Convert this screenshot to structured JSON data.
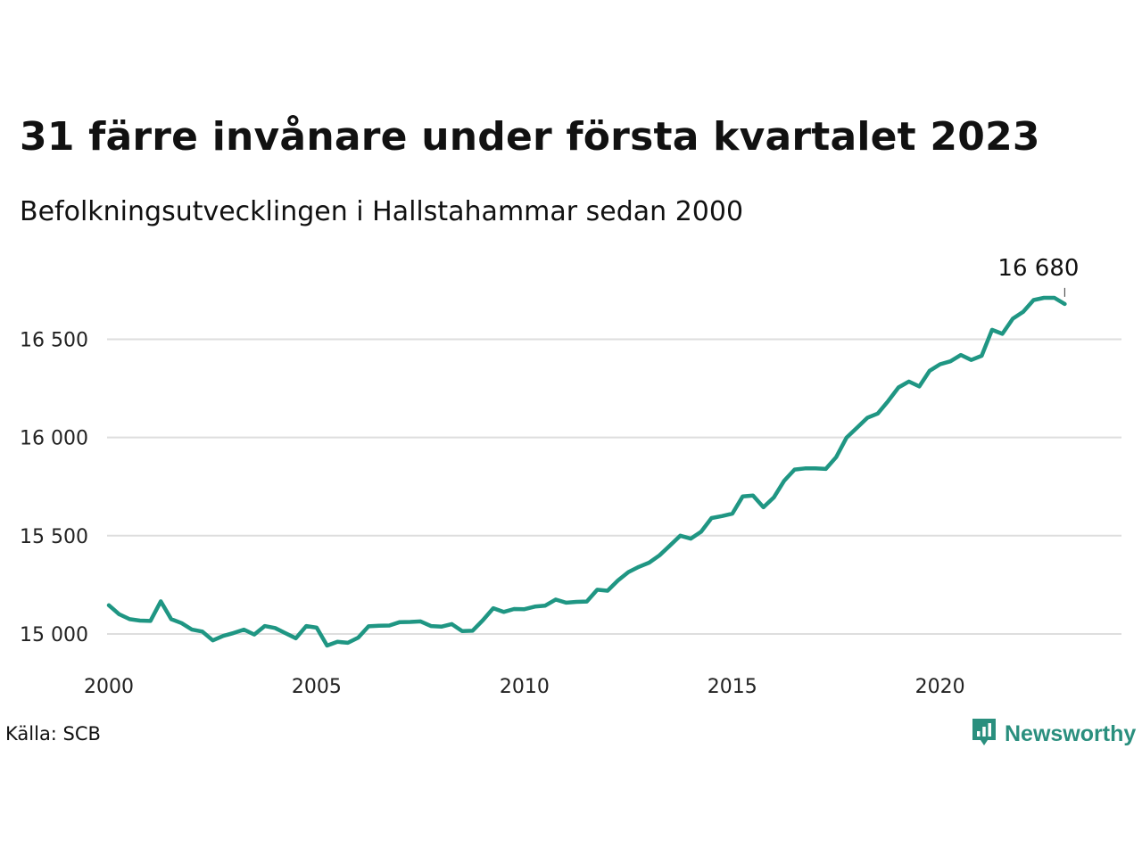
{
  "title": "31 färre invånare under första kvartalet 2023",
  "subtitle": "Befolkningsutvecklingen i Hallstahammar sedan 2000",
  "source": "Källa: SCB",
  "brand": {
    "name": "Newsworthy",
    "icon": "newsworthy-logo-icon",
    "color": "#2a8f7e"
  },
  "chart_data": {
    "type": "line",
    "title": "31 färre invånare under första kvartalet 2023",
    "subtitle": "Befolkningsutvecklingen i Hallstahammar sedan 2000",
    "xlabel": "",
    "ylabel": "",
    "x_ticks": [
      2000,
      2005,
      2010,
      2015,
      2020
    ],
    "y_ticks": [
      15000,
      15500,
      16000,
      16500
    ],
    "y_tick_labels": [
      "15 000",
      "15 500",
      "16 000",
      "16 500"
    ],
    "xlim": [
      2000,
      2024
    ],
    "ylim": [
      14850,
      16920
    ],
    "grid": "horizontal",
    "line_color": "#1f9683",
    "end_label": "16 680",
    "series": [
      {
        "x": [
          2000.0,
          2000.25,
          2000.5,
          2000.75,
          2001.0,
          2001.25,
          2001.5,
          2001.75,
          2002.0,
          2002.25,
          2002.5,
          2002.75,
          2003.0,
          2003.25,
          2003.5,
          2003.75,
          2004.0,
          2004.25,
          2004.5,
          2004.75,
          2005.0,
          2005.25,
          2005.5,
          2005.75,
          2006.0,
          2006.25,
          2006.5,
          2006.75,
          2007.0,
          2007.25,
          2007.5,
          2007.75,
          2008.0,
          2008.25,
          2008.5,
          2008.75,
          2009.0,
          2009.25,
          2009.5,
          2009.75,
          2010.0,
          2010.25,
          2010.5,
          2010.75,
          2011.0,
          2011.25,
          2011.5,
          2011.75,
          2012.0,
          2012.25,
          2012.5,
          2012.75,
          2013.0,
          2013.25,
          2013.5,
          2013.75,
          2014.0,
          2014.25,
          2014.5,
          2014.75,
          2015.0,
          2015.25,
          2015.5,
          2015.75,
          2016.0,
          2016.25,
          2016.5,
          2016.75,
          2017.0,
          2017.25,
          2017.5,
          2017.75,
          2018.0,
          2018.25,
          2018.5,
          2018.75,
          2019.0,
          2019.25,
          2019.5,
          2019.75,
          2020.0,
          2020.25,
          2020.5,
          2020.75,
          2021.0,
          2021.25,
          2021.5,
          2021.75,
          2022.0,
          2022.25,
          2022.5,
          2022.75,
          2023.0
        ],
        "values": [
          15146,
          15100,
          15075,
          15068,
          15066,
          15166,
          15075,
          15055,
          15022,
          15012,
          14967,
          14990,
          15005,
          15022,
          14997,
          15040,
          15030,
          15004,
          14978,
          15040,
          15032,
          14941,
          14960,
          14955,
          14981,
          15039,
          15042,
          15043,
          15060,
          15061,
          15064,
          15040,
          15037,
          15050,
          15015,
          15016,
          15070,
          15131,
          15112,
          15127,
          15126,
          15139,
          15144,
          15175,
          15159,
          15163,
          15165,
          15225,
          15220,
          15272,
          15315,
          15341,
          15363,
          15400,
          15450,
          15500,
          15485,
          15520,
          15590,
          15600,
          15612,
          15700,
          15705,
          15645,
          15695,
          15780,
          15837,
          15843,
          15843,
          15840,
          15900,
          16000,
          16050,
          16100,
          16122,
          16185,
          16255,
          16285,
          16260,
          16340,
          16373,
          16388,
          16420,
          16395,
          16416,
          16548,
          16528,
          16605,
          16640,
          16700,
          16711,
          16711,
          16680
        ]
      }
    ]
  }
}
